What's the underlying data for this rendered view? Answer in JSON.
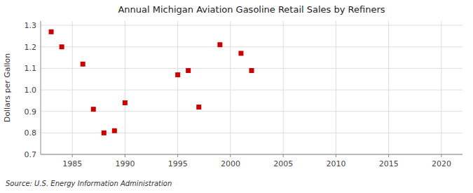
{
  "chart_data": {
    "type": "scatter",
    "title": "Annual Michigan Aviation Gasoline Retail Sales by Refiners",
    "y_label": "Dollars per Gallon",
    "annotations": [
      "Source: U.S. Energy Information Administration"
    ],
    "x": [
      1983,
      1984,
      1986,
      1987,
      1988,
      1989,
      1990,
      1995,
      1996,
      1997,
      1999,
      2001,
      2002
    ],
    "values": [
      1.27,
      1.2,
      1.12,
      0.91,
      0.8,
      0.81,
      0.94,
      1.07,
      1.09,
      0.92,
      1.21,
      1.17,
      1.09
    ],
    "xlim": [
      1982,
      2022
    ],
    "ylim": [
      0.7,
      1.32
    ],
    "xticks": [
      1985,
      1990,
      1995,
      2000,
      2005,
      2010,
      2015,
      2020
    ],
    "yticks": [
      0.7,
      0.8,
      0.9,
      {
        "value": 1.0,
        "label": "1.0"
      },
      1.1,
      1.2,
      1.3
    ],
    "color": "#cc0000",
    "marker": "square",
    "grid": true
  }
}
